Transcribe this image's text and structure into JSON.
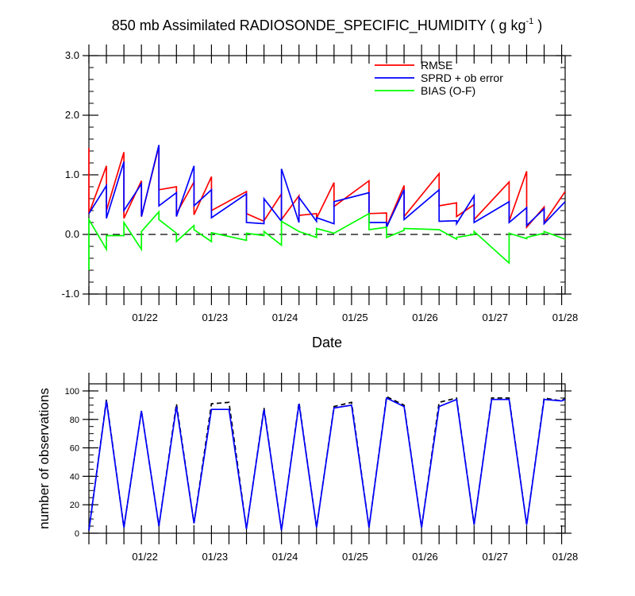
{
  "chart_data": [
    {
      "type": "line",
      "title": "850 mb Assimilated RADIOSONDE_SPECIFIC_HUMIDITY ( g kg",
      "title_exponent": "-1",
      "title_suffix": " )",
      "xlabel": "Date",
      "ylim": [
        -1.0,
        3.0
      ],
      "y_ticks": [
        "-1.0",
        "0.0",
        "1.0",
        "2.0",
        "3.0"
      ],
      "xlim": [
        0,
        6.8
      ],
      "x_ticks": [
        "01/22",
        "01/23",
        "01/24",
        "01/25",
        "01/26",
        "01/27",
        "01/28"
      ],
      "x_tick_positions": [
        0.8,
        1.8,
        2.8,
        3.8,
        4.8,
        5.8,
        6.8
      ],
      "zero_line": true,
      "legend_position": "top-right",
      "series": [
        {
          "name": "RMSE",
          "color": "#ff0000",
          "x": [
            0,
            0,
            0.25,
            0.25,
            0.5,
            0.5,
            0.75,
            0.75,
            1.0,
            1.0,
            1.25,
            1.25,
            1.5,
            1.5,
            1.75,
            1.75,
            2.25,
            2.25,
            2.5,
            2.5,
            2.75,
            2.75,
            3.0,
            3.0,
            3.25,
            3.25,
            3.5,
            3.5,
            4.0,
            4.0,
            4.25,
            4.25,
            4.5,
            4.5,
            5.0,
            5.0,
            5.25,
            5.25,
            5.5,
            5.5,
            6.0,
            6.0,
            6.25,
            6.25,
            6.5,
            6.5,
            6.8
          ],
          "y": [
            1.45,
            0.35,
            1.15,
            0.4,
            1.38,
            0.27,
            0.9,
            0.3,
            1.48,
            0.75,
            0.8,
            0.35,
            0.88,
            0.33,
            0.97,
            0.4,
            0.72,
            0.35,
            0.22,
            0.23,
            0.68,
            0.25,
            0.65,
            0.32,
            0.35,
            0.27,
            0.87,
            0.47,
            0.9,
            0.35,
            0.36,
            0.13,
            0.82,
            0.3,
            1.02,
            0.48,
            0.53,
            0.3,
            0.5,
            0.25,
            0.88,
            0.22,
            1.06,
            0.12,
            0.46,
            0.2,
            0.72
          ]
        },
        {
          "name": "SPRD + ob error",
          "color": "#0000ff",
          "x": [
            0,
            0.25,
            0.25,
            0.5,
            0.5,
            0.75,
            0.75,
            1.0,
            1.0,
            1.25,
            1.25,
            1.5,
            1.5,
            1.75,
            1.75,
            2.25,
            2.25,
            2.5,
            2.5,
            2.75,
            2.75,
            3.0,
            3.0,
            3.25,
            3.25,
            3.5,
            3.5,
            4.0,
            4.0,
            4.25,
            4.25,
            4.5,
            4.5,
            5.0,
            5.0,
            5.25,
            5.25,
            5.5,
            5.5,
            6.0,
            6.0,
            6.25,
            6.25,
            6.5,
            6.5,
            6.8
          ],
          "y": [
            0.35,
            0.82,
            0.27,
            1.22,
            0.4,
            0.85,
            0.3,
            1.5,
            0.48,
            0.7,
            0.3,
            1.15,
            0.48,
            0.75,
            0.28,
            0.68,
            0.2,
            0.18,
            0.6,
            0.22,
            1.1,
            0.2,
            0.62,
            0.22,
            0.28,
            0.18,
            0.55,
            0.7,
            0.2,
            0.2,
            0.12,
            0.75,
            0.25,
            0.75,
            0.22,
            0.23,
            0.18,
            0.65,
            0.2,
            0.55,
            0.2,
            0.45,
            0.15,
            0.43,
            0.18,
            0.55
          ]
        },
        {
          "name": "BIAS (O-F)",
          "color": "#00ff00",
          "x": [
            0,
            0,
            0.25,
            0.25,
            0.5,
            0.5,
            0.75,
            0.75,
            1.0,
            1.0,
            1.25,
            1.25,
            1.5,
            1.5,
            1.75,
            1.75,
            2.25,
            2.25,
            2.5,
            2.5,
            2.75,
            2.75,
            3.0,
            3.0,
            3.25,
            3.25,
            3.5,
            3.5,
            4.0,
            4.0,
            4.25,
            4.25,
            4.5,
            4.5,
            5.0,
            5.0,
            5.25,
            5.25,
            5.5,
            5.5,
            6.0,
            6.0,
            6.25,
            6.25,
            6.5,
            6.5,
            6.8
          ],
          "y": [
            -0.6,
            0.25,
            -0.25,
            -0.02,
            -0.02,
            0.2,
            -0.25,
            0.05,
            0.38,
            0.25,
            0.02,
            -0.12,
            0.15,
            0.08,
            -0.12,
            0.03,
            -0.1,
            0.02,
            -0.02,
            0.05,
            -0.18,
            0.22,
            0.05,
            0.05,
            -0.05,
            0.1,
            0.02,
            0.02,
            0.35,
            0.08,
            0.12,
            -0.05,
            0.07,
            0.1,
            0.08,
            0.08,
            -0.08,
            -0.05,
            0.0,
            0.05,
            -0.48,
            0.02,
            -0.07,
            -0.05,
            0.02,
            0.05,
            -0.08
          ]
        }
      ]
    },
    {
      "type": "line",
      "ylabel": "number of observations",
      "ylim": [
        0,
        105
      ],
      "y_ticks": [
        "0",
        "20",
        "40",
        "60",
        "80",
        "100"
      ],
      "xlim": [
        0,
        6.8
      ],
      "x_ticks": [
        "01/22",
        "01/23",
        "01/24",
        "01/25",
        "01/26",
        "01/27",
        "01/28"
      ],
      "x_tick_positions": [
        0.8,
        1.8,
        2.8,
        3.8,
        4.8,
        5.8,
        6.8
      ],
      "series": [
        {
          "style": "dashed",
          "color": "#000000",
          "x": [
            0,
            0.25,
            0.5,
            0.75,
            1.0,
            1.25,
            1.5,
            1.75,
            2.0,
            2.25,
            2.5,
            2.75,
            3.0,
            3.25,
            3.5,
            3.75,
            4.0,
            4.25,
            4.5,
            4.75,
            5.0,
            5.25,
            5.5,
            5.75,
            6.0,
            6.25,
            6.5,
            6.75,
            6.8
          ],
          "y": [
            2,
            94,
            4,
            86,
            5,
            91,
            7,
            91,
            92,
            3,
            88,
            2,
            92,
            4,
            89,
            92,
            4,
            96,
            90,
            4,
            92,
            95,
            6,
            95,
            95,
            6,
            95,
            93,
            95
          ]
        },
        {
          "style": "solid",
          "color": "#0000ff",
          "x": [
            0,
            0.25,
            0.5,
            0.75,
            1.0,
            1.25,
            1.5,
            1.75,
            2.0,
            2.25,
            2.5,
            2.75,
            3.0,
            3.25,
            3.5,
            3.75,
            4.0,
            4.25,
            4.5,
            4.75,
            5.0,
            5.25,
            5.5,
            5.75,
            6.0,
            6.25,
            6.5,
            6.75,
            6.8
          ],
          "y": [
            2,
            93,
            4,
            86,
            5,
            89,
            7,
            87,
            87,
            3,
            87,
            2,
            91,
            4,
            88,
            90,
            4,
            95,
            89,
            4,
            89,
            94,
            6,
            94,
            94,
            6,
            94,
            93,
            94
          ]
        }
      ]
    }
  ]
}
